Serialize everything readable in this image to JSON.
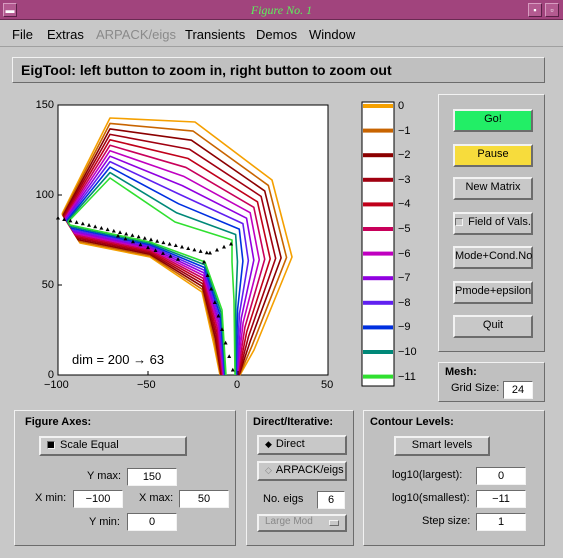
{
  "window": {
    "title": "Figure No. 1",
    "minimize_glyph": "▭",
    "close_glyph": "▭"
  },
  "menu": [
    {
      "label": "File",
      "disabled": false
    },
    {
      "label": "Extras",
      "disabled": false
    },
    {
      "label": "ARPACK/eigs",
      "disabled": true
    },
    {
      "label": "Transients",
      "disabled": false
    },
    {
      "label": "Demos",
      "disabled": false
    },
    {
      "label": "Window",
      "disabled": false
    }
  ],
  "banner": "EigTool: left button to zoom in, right button to zoom out",
  "plot": {
    "yticks": [
      "150",
      "100",
      "50",
      "0"
    ],
    "xticks": [
      "−100",
      "−50",
      "0",
      "50"
    ],
    "annotation": "dim = 200 → 63"
  },
  "colorbar": {
    "ticks": [
      "0",
      "−1",
      "−2",
      "−3",
      "−4",
      "−5",
      "−6",
      "−7",
      "−8",
      "−9",
      "−10",
      "−11"
    ],
    "colors": [
      "#f5a000",
      "#c86400",
      "#8b0000",
      "#a00010",
      "#c0001a",
      "#c8005a",
      "#c000c0",
      "#9000e0",
      "#6020f0",
      "#0030e0",
      "#008878",
      "#30e030"
    ]
  },
  "controls": {
    "go": "Go!",
    "pause": "Pause",
    "new_matrix": "New Matrix",
    "field_of_vals": "Field of Vals.",
    "mode_cond": "Mode+Cond.No",
    "pmode_eps": "Pmode+epsilon",
    "quit": "Quit",
    "go_color": "#22ee66",
    "pause_color": "#f7dc3c"
  },
  "mesh": {
    "title": "Mesh:",
    "grid_label": "Grid Size:",
    "grid_value": "24"
  },
  "figure_axes": {
    "title": "Figure Axes:",
    "scale_equal": "Scale Equal",
    "ymax_label": "Y max:",
    "ymax": "150",
    "xmin_label": "X min:",
    "xmin": "−100",
    "xmax_label": "X max:",
    "xmax": "50",
    "ymin_label": "Y min:",
    "ymin": "0"
  },
  "direct": {
    "title": "Direct/Iterative:",
    "direct": "Direct",
    "arpack": "ARPACK/eigs",
    "no_eigs_label": "No. eigs",
    "no_eigs": "6",
    "which": "Large Mod"
  },
  "contour": {
    "title": "Contour Levels:",
    "smart": "Smart  levels",
    "largest_label": "log10(largest):",
    "largest": "0",
    "smallest_label": "log10(smallest):",
    "smallest": "−11",
    "step_label": "Step size:",
    "step": "1"
  }
}
